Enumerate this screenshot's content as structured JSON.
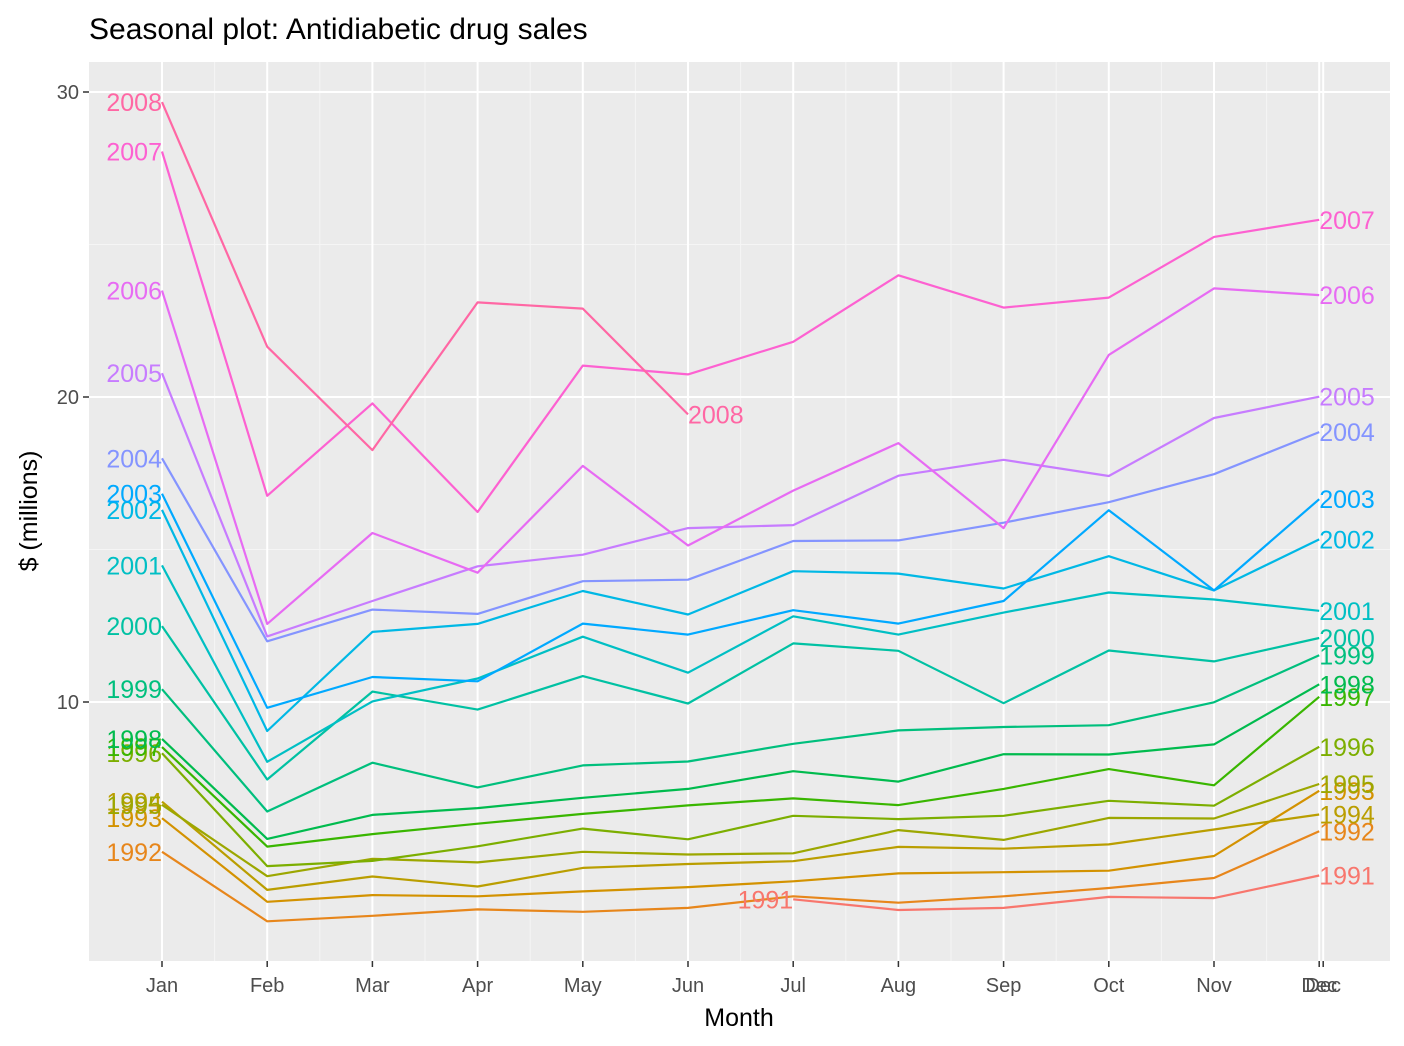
{
  "chart_data": {
    "type": "line",
    "title": "Seasonal plot: Antidiabetic drug sales",
    "xlabel": "Month",
    "ylabel": "$ (millions)",
    "categories": [
      "Jan",
      "Feb",
      "Mar",
      "Apr",
      "May",
      "Jun",
      "Jul",
      "Aug",
      "Sep",
      "Oct",
      "Nov",
      "Dec"
    ],
    "extra_tick_labels": [
      "Dec"
    ],
    "ylim": [
      1.5,
      31.0
    ],
    "yticks": [
      10,
      20,
      30
    ],
    "grid": true,
    "legend": "none",
    "series": [
      {
        "name": "1991",
        "color": "#F8766D",
        "values": [
          null,
          null,
          null,
          null,
          null,
          null,
          3.53,
          3.18,
          3.25,
          3.61,
          3.57,
          4.31
        ]
      },
      {
        "name": "1992",
        "color": "#E7861B",
        "values": [
          5.09,
          2.81,
          2.99,
          3.2,
          3.12,
          3.25,
          3.63,
          3.42,
          3.63,
          3.9,
          4.23,
          5.76
        ]
      },
      {
        "name": "1993",
        "color": "#D39200",
        "values": [
          6.19,
          3.45,
          3.67,
          3.63,
          3.79,
          3.93,
          4.12,
          4.38,
          4.42,
          4.47,
          4.95,
          7.09
        ]
      },
      {
        "name": "1994",
        "color": "#BA9E00",
        "values": [
          6.73,
          3.84,
          4.28,
          3.95,
          4.56,
          4.69,
          4.78,
          5.25,
          5.19,
          5.33,
          5.82,
          6.31
        ]
      },
      {
        "name": "1995",
        "color": "#9CA700",
        "values": [
          6.63,
          4.29,
          4.86,
          4.74,
          5.09,
          5.0,
          5.04,
          5.8,
          5.48,
          6.2,
          6.18,
          7.31
        ]
      },
      {
        "name": "1996",
        "color": "#7CAE00",
        "values": [
          8.32,
          4.62,
          4.79,
          5.27,
          5.85,
          5.5,
          6.27,
          6.16,
          6.27,
          6.76,
          6.6,
          8.53
        ]
      },
      {
        "name": "1997",
        "color": "#39B600",
        "values": [
          8.52,
          5.26,
          5.67,
          6.01,
          6.33,
          6.61,
          6.84,
          6.62,
          7.15,
          7.8,
          7.27,
          10.17
        ]
      },
      {
        "name": "1998",
        "color": "#00BB4E",
        "values": [
          8.79,
          5.51,
          6.3,
          6.52,
          6.86,
          7.15,
          7.73,
          7.39,
          8.29,
          8.28,
          8.61,
          10.58
        ]
      },
      {
        "name": "1999",
        "color": "#00BF7D",
        "values": [
          10.42,
          6.41,
          8.01,
          7.2,
          7.92,
          8.05,
          8.63,
          9.07,
          9.18,
          9.24,
          9.99,
          11.53
        ]
      },
      {
        "name": "2000",
        "color": "#00C1A3",
        "values": [
          12.49,
          7.46,
          10.34,
          9.75,
          10.85,
          9.95,
          11.92,
          11.68,
          9.96,
          11.69,
          11.33,
          12.1
        ]
      },
      {
        "name": "2001",
        "color": "#00BFC4",
        "values": [
          14.48,
          8.04,
          10.02,
          10.77,
          12.14,
          10.96,
          12.81,
          12.21,
          12.93,
          13.59,
          13.36,
          12.99
        ]
      },
      {
        "name": "2002",
        "color": "#00B8E5",
        "values": [
          16.3,
          9.05,
          12.3,
          12.56,
          13.64,
          12.87,
          14.29,
          14.21,
          13.72,
          14.78,
          13.66,
          15.33
        ]
      },
      {
        "name": "2003",
        "color": "#00A9FF",
        "values": [
          16.83,
          9.81,
          10.82,
          10.68,
          12.57,
          12.21,
          13.01,
          12.57,
          13.31,
          16.29,
          13.66,
          16.65
        ]
      },
      {
        "name": "2004",
        "color": "#8494FF",
        "values": [
          17.99,
          11.99,
          13.03,
          12.89,
          13.96,
          14.01,
          15.28,
          15.3,
          15.88,
          16.55,
          17.47,
          18.85
        ]
      },
      {
        "name": "2005",
        "color": "#C77CFF",
        "values": [
          20.78,
          12.15,
          13.31,
          14.45,
          14.83,
          15.7,
          15.8,
          17.42,
          17.94,
          17.41,
          19.31,
          20.01
        ]
      },
      {
        "name": "2006",
        "color": "#E76BF3",
        "values": [
          23.49,
          12.56,
          15.54,
          14.24,
          17.74,
          15.13,
          16.93,
          18.49,
          15.7,
          21.38,
          23.56,
          23.34
        ]
      },
      {
        "name": "2007",
        "color": "#FD61D1",
        "values": [
          28.05,
          16.76,
          19.79,
          16.23,
          21.03,
          20.74,
          21.81,
          23.99,
          22.93,
          23.26,
          25.25,
          25.81
        ]
      },
      {
        "name": "2008",
        "color": "#FF67A4",
        "values": [
          29.67,
          21.65,
          18.26,
          23.1,
          22.9,
          19.43,
          null,
          null,
          null,
          null,
          null,
          null
        ]
      }
    ]
  }
}
